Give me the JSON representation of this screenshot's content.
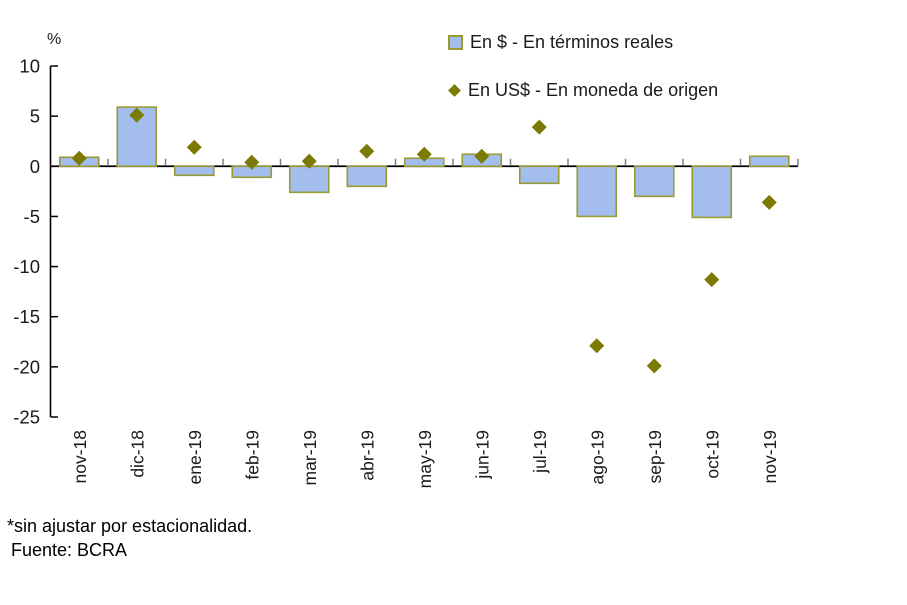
{
  "chart_data": {
    "type": "bar",
    "title": "",
    "categories": [
      "nov-18",
      "dic-18",
      "ene-19",
      "feb-19",
      "mar-19",
      "abr-19",
      "may-19",
      "jun-19",
      "jul-19",
      "ago-19",
      "sep-19",
      "oct-19",
      "nov-19"
    ],
    "series": [
      {
        "name": "En $ - En términos reales",
        "type": "bar",
        "values": [
          0.9,
          5.9,
          -0.9,
          -1.1,
          -2.6,
          -2.0,
          0.8,
          1.2,
          -1.7,
          -5.0,
          -3.0,
          -5.1,
          1.0
        ]
      },
      {
        "name": "En US$ - En moneda de origen",
        "type": "scatter-diamond",
        "values": [
          0.8,
          5.1,
          1.9,
          0.4,
          0.5,
          1.5,
          1.2,
          1.0,
          3.9,
          -17.9,
          -19.9,
          -11.3,
          -3.6
        ]
      }
    ],
    "xlabel": "",
    "ylabel": "%",
    "ylim": [
      -25,
      10
    ],
    "yticks": [
      10,
      5,
      0,
      -5,
      -10,
      -15,
      -20,
      -25
    ],
    "grid": false,
    "legend_position": "top-right"
  },
  "colors": {
    "bar_fill": "#A3BDEE",
    "bar_border": "#9B9B33",
    "diamond": "#7A7A04",
    "axis": "#000000",
    "category_tick": "#7F7F7F",
    "text": "#1a1a1a"
  },
  "footnotes": {
    "asterisk": "*sin ajustar por estacionalidad.",
    "source": "Fuente: BCRA"
  }
}
